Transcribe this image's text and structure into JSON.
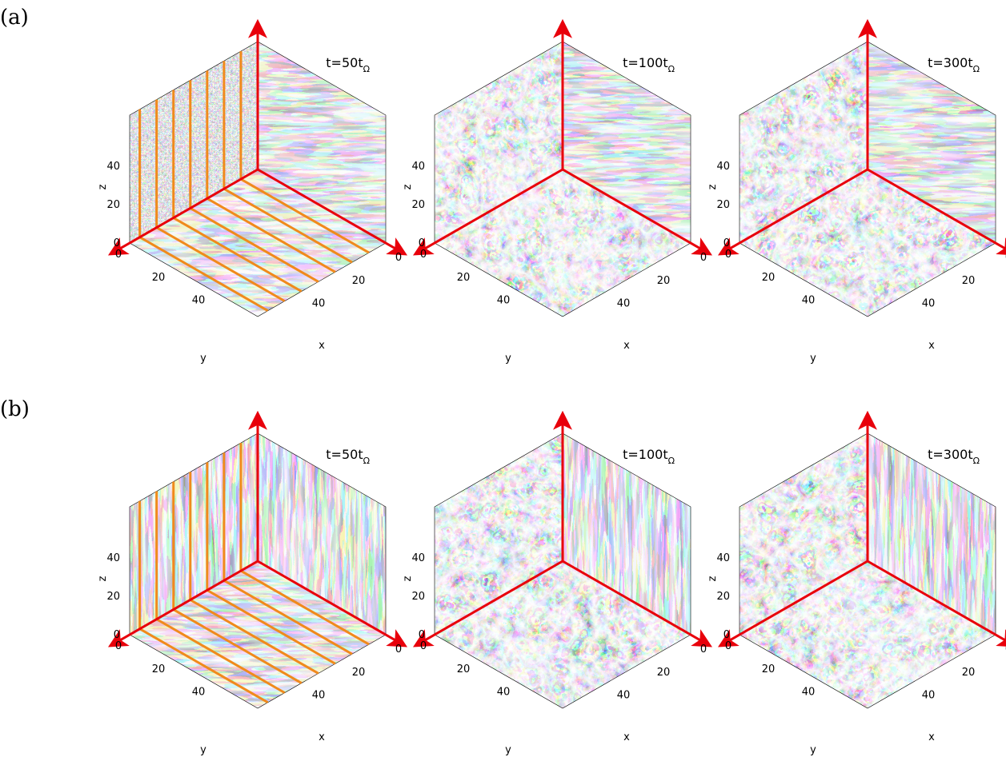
{
  "rows": [
    {
      "label": "(a)",
      "panels": [
        {
          "time_main": "t=50t",
          "time_sub": "Ω",
          "stripes": true
        },
        {
          "time_main": "t=100t",
          "time_sub": "Ω",
          "stripes": false
        },
        {
          "time_main": "t=300t",
          "time_sub": "Ω",
          "stripes": false
        }
      ]
    },
    {
      "label": "(b)",
      "panels": [
        {
          "time_main": "t=50t",
          "time_sub": "Ω",
          "stripes": true
        },
        {
          "time_main": "t=100t",
          "time_sub": "Ω",
          "stripes": false
        },
        {
          "time_main": "t=300t",
          "time_sub": "Ω",
          "stripes": false
        }
      ]
    }
  ],
  "axes": {
    "z_label": "z",
    "y_label": "y",
    "x_label": "x",
    "z_ticks": [
      "0",
      "20",
      "40"
    ],
    "y_ticks": [
      "0",
      "20",
      "40"
    ],
    "x_ticks": [
      "0",
      "20",
      "40"
    ]
  },
  "colors": {
    "axis_arrow": "#e8000b",
    "stripe": "#f08a1c",
    "field_dark": "#1a1c24",
    "field_light": "#d9dee6"
  }
}
